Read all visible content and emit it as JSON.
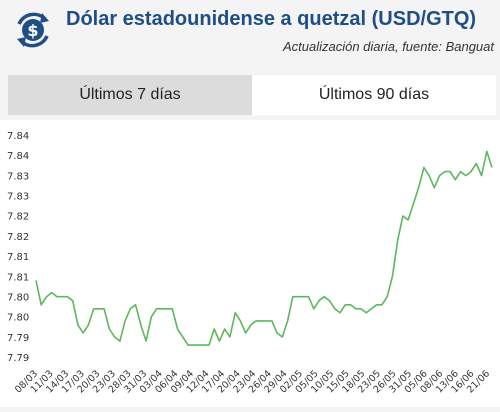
{
  "header": {
    "title": "Dólar estadounidense a quetzal (USD/GTQ)",
    "subtitle": "Actualización diaria, fuente: Banguat",
    "logo_icon": "dollar-exchange-icon"
  },
  "tabs": [
    {
      "label": "Últimos 7 días",
      "active": false
    },
    {
      "label": "Últimos 90 días",
      "active": true
    }
  ],
  "colors": {
    "title": "#1f4e87",
    "line": "#5cb85c",
    "tab_inactive": "#dcdcdc",
    "tab_active": "#ffffff"
  },
  "chart_data": {
    "type": "line",
    "title": "",
    "xlabel": "",
    "ylabel": "",
    "y_tick_labels": [
      "7.84",
      "7.84",
      "7.83",
      "7.83",
      "7.82",
      "7.82",
      "7.81",
      "7.81",
      "7.80",
      "7.80",
      "7.79",
      "7.79"
    ],
    "ylim": [
      7.7885,
      7.845
    ],
    "x_tick_labels": [
      "08/03",
      "11/03",
      "14/03",
      "17/03",
      "20/03",
      "23/03",
      "28/03",
      "31/03",
      "03/04",
      "06/04",
      "09/04",
      "12/04",
      "17/04",
      "20/04",
      "23/04",
      "26/04",
      "29/04",
      "02/05",
      "05/05",
      "10/05",
      "15/05",
      "18/05",
      "23/05",
      "26/05",
      "31/05",
      "05/06",
      "08/06",
      "13/06",
      "16/06",
      "21/06"
    ],
    "grid": false,
    "series": [
      {
        "values": [
          7.8072,
          7.8012,
          7.8032,
          7.8042,
          7.8032,
          7.8032,
          7.8032,
          7.8022,
          7.7962,
          7.7942,
          7.7962,
          7.8002,
          7.8002,
          7.8002,
          7.7952,
          7.7932,
          7.7922,
          7.7972,
          7.8002,
          7.8012,
          7.7962,
          7.7922,
          7.7982,
          7.8002,
          7.8002,
          7.8002,
          7.8002,
          7.7952,
          7.7932,
          7.7912,
          7.7912,
          7.7912,
          7.7912,
          7.7912,
          7.7952,
          7.7922,
          7.7952,
          7.7932,
          7.7992,
          7.7972,
          7.7942,
          7.7962,
          7.7972,
          7.7972,
          7.7972,
          7.7972,
          7.7942,
          7.7932,
          7.7972,
          7.8032,
          7.8032,
          7.8032,
          7.8032,
          7.8002,
          7.8022,
          7.8032,
          7.8022,
          7.8002,
          7.7992,
          7.8012,
          7.8012,
          7.8002,
          7.8002,
          7.7992,
          7.8002,
          7.8012,
          7.8012,
          7.8032,
          7.8082,
          7.8172,
          7.8232,
          7.8222,
          7.8262,
          7.8302,
          7.8352,
          7.8332,
          7.8302,
          7.8332,
          7.8342,
          7.8342,
          7.8322,
          7.8342,
          7.8332,
          7.8342,
          7.8362,
          7.8332,
          7.8392,
          7.8352
        ]
      }
    ]
  }
}
